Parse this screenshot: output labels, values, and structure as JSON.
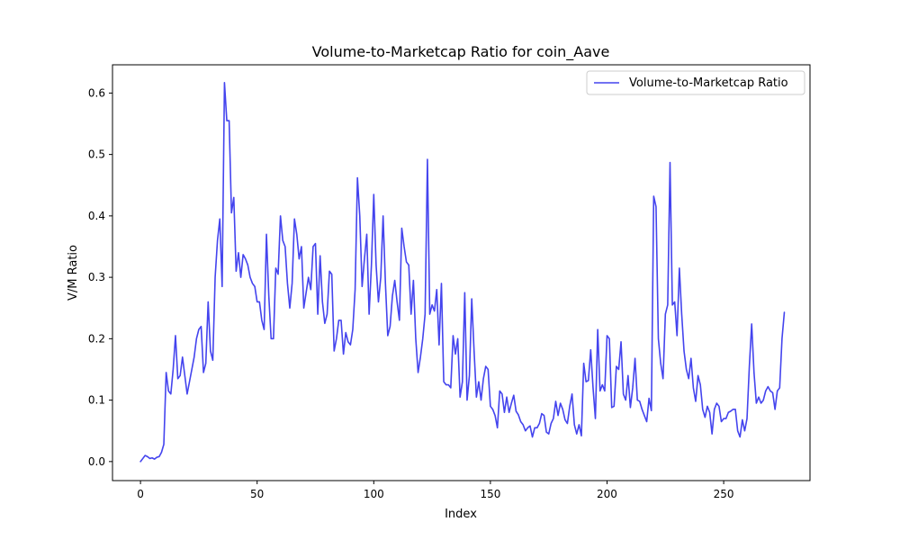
{
  "chart_data": {
    "type": "line",
    "title": "Volume-to-Marketcap Ratio for coin_Aave",
    "xlabel": "Index",
    "ylabel": "V/M Ratio",
    "xlim": [
      -12.0,
      287.0
    ],
    "ylim": [
      -0.031,
      0.646
    ],
    "x_ticks": [
      0,
      50,
      100,
      150,
      200,
      250
    ],
    "y_ticks": [
      0.0,
      0.1,
      0.2,
      0.3,
      0.4,
      0.5,
      0.6
    ],
    "x_tick_labels": [
      "0",
      "50",
      "100",
      "150",
      "200",
      "250"
    ],
    "y_tick_labels": [
      "0.0",
      "0.1",
      "0.2",
      "0.3",
      "0.4",
      "0.5",
      "0.6"
    ],
    "grid": false,
    "legend": {
      "position": "top-right"
    },
    "series": [
      {
        "name": "Volume-to-Marketcap Ratio",
        "color": "#4444ee",
        "x_start": 0,
        "x_step": 1,
        "values": [
          0.0,
          0.005,
          0.01,
          0.008,
          0.005,
          0.006,
          0.004,
          0.007,
          0.008,
          0.015,
          0.028,
          0.145,
          0.115,
          0.11,
          0.15,
          0.205,
          0.135,
          0.14,
          0.17,
          0.14,
          0.11,
          0.13,
          0.15,
          0.17,
          0.2,
          0.215,
          0.22,
          0.145,
          0.16,
          0.26,
          0.18,
          0.165,
          0.3,
          0.36,
          0.395,
          0.285,
          0.617,
          0.555,
          0.555,
          0.405,
          0.43,
          0.31,
          0.34,
          0.3,
          0.337,
          0.33,
          0.32,
          0.3,
          0.29,
          0.285,
          0.26,
          0.26,
          0.23,
          0.215,
          0.37,
          0.27,
          0.2,
          0.2,
          0.315,
          0.305,
          0.4,
          0.36,
          0.35,
          0.29,
          0.25,
          0.29,
          0.395,
          0.37,
          0.33,
          0.35,
          0.25,
          0.275,
          0.3,
          0.28,
          0.35,
          0.355,
          0.24,
          0.335,
          0.26,
          0.225,
          0.24,
          0.31,
          0.305,
          0.18,
          0.2,
          0.23,
          0.23,
          0.175,
          0.21,
          0.195,
          0.19,
          0.215,
          0.28,
          0.462,
          0.4,
          0.285,
          0.33,
          0.37,
          0.24,
          0.32,
          0.435,
          0.32,
          0.26,
          0.3,
          0.4,
          0.29,
          0.205,
          0.22,
          0.27,
          0.295,
          0.26,
          0.23,
          0.38,
          0.35,
          0.325,
          0.32,
          0.24,
          0.295,
          0.2,
          0.145,
          0.17,
          0.2,
          0.24,
          0.492,
          0.24,
          0.255,
          0.245,
          0.28,
          0.19,
          0.29,
          0.13,
          0.125,
          0.125,
          0.12,
          0.205,
          0.175,
          0.2,
          0.105,
          0.13,
          0.275,
          0.1,
          0.14,
          0.265,
          0.18,
          0.105,
          0.13,
          0.1,
          0.135,
          0.155,
          0.15,
          0.09,
          0.085,
          0.075,
          0.055,
          0.115,
          0.11,
          0.08,
          0.105,
          0.08,
          0.095,
          0.108,
          0.082,
          0.076,
          0.065,
          0.06,
          0.05,
          0.055,
          0.058,
          0.04,
          0.055,
          0.055,
          0.062,
          0.078,
          0.075,
          0.048,
          0.045,
          0.062,
          0.07,
          0.098,
          0.075,
          0.095,
          0.085,
          0.068,
          0.062,
          0.09,
          0.11,
          0.06,
          0.045,
          0.06,
          0.042,
          0.16,
          0.13,
          0.132,
          0.182,
          0.12,
          0.07,
          0.215,
          0.115,
          0.125,
          0.115,
          0.205,
          0.2,
          0.088,
          0.09,
          0.155,
          0.15,
          0.195,
          0.11,
          0.1,
          0.14,
          0.088,
          0.12,
          0.168,
          0.1,
          0.098,
          0.085,
          0.075,
          0.065,
          0.103,
          0.083,
          0.432,
          0.415,
          0.2,
          0.16,
          0.135,
          0.24,
          0.255,
          0.487,
          0.255,
          0.26,
          0.205,
          0.315,
          0.24,
          0.18,
          0.15,
          0.135,
          0.168,
          0.12,
          0.098,
          0.14,
          0.125,
          0.085,
          0.072,
          0.09,
          0.08,
          0.045,
          0.085,
          0.095,
          0.09,
          0.065,
          0.07,
          0.07,
          0.08,
          0.082,
          0.085,
          0.085,
          0.05,
          0.04,
          0.068,
          0.05,
          0.07,
          0.155,
          0.224,
          0.145,
          0.095,
          0.105,
          0.095,
          0.1,
          0.115,
          0.122,
          0.115,
          0.112,
          0.085,
          0.115,
          0.12,
          0.2,
          0.243
        ]
      }
    ]
  }
}
